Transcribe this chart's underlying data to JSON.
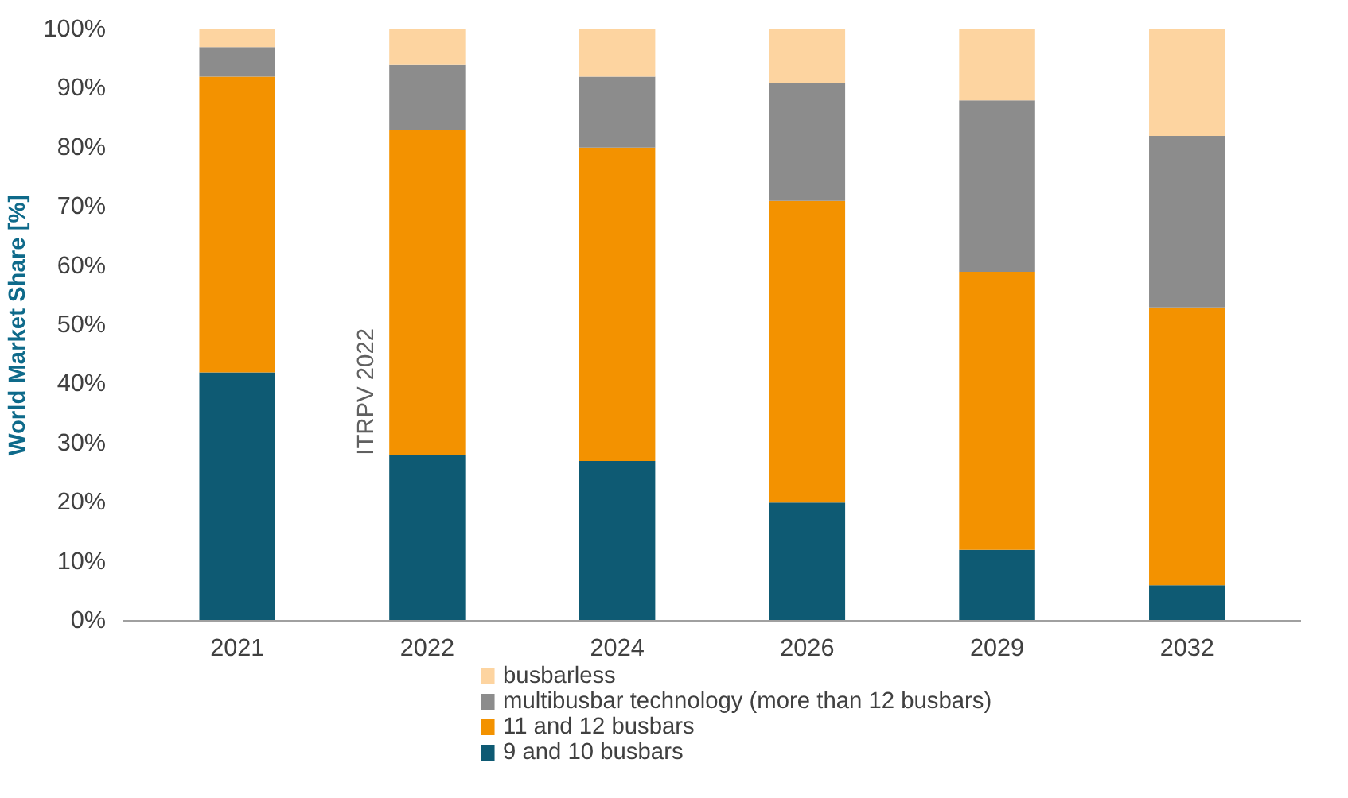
{
  "chart_data": {
    "type": "bar",
    "stacked": true,
    "ylabel": "World Market Share [%]",
    "categories": [
      "2021",
      "2022",
      "2024",
      "2026",
      "2029",
      "2032"
    ],
    "series": [
      {
        "name": "9 and 10 busbars",
        "color": "#0e5a73",
        "values": [
          42,
          28,
          27,
          20,
          12,
          6
        ]
      },
      {
        "name": "11 and 12 busbars",
        "color": "#f39200",
        "values": [
          50,
          55,
          53,
          51,
          47,
          47
        ]
      },
      {
        "name": "multibusbar technology (more than 12 busbars)",
        "color": "#8c8c8c",
        "values": [
          5,
          11,
          12,
          20,
          29,
          29
        ]
      },
      {
        "name": "busbarless",
        "color": "#fdd4a0",
        "values": [
          3,
          6,
          8,
          9,
          12,
          18
        ]
      }
    ],
    "ylim": [
      0,
      100
    ],
    "yticks": [
      {
        "value": 0,
        "label": "0%"
      },
      {
        "value": 10,
        "label": "10%"
      },
      {
        "value": 20,
        "label": "20%"
      },
      {
        "value": 30,
        "label": "30%"
      },
      {
        "value": 40,
        "label": "40%"
      },
      {
        "value": 50,
        "label": "50%"
      },
      {
        "value": 60,
        "label": "60%"
      },
      {
        "value": 70,
        "label": "70%"
      },
      {
        "value": 80,
        "label": "80%"
      },
      {
        "value": 90,
        "label": "90%"
      },
      {
        "value": 100,
        "label": "100%"
      }
    ],
    "grid": false,
    "legend": "bottom",
    "annotations": [
      "ITRPV 2022"
    ]
  }
}
